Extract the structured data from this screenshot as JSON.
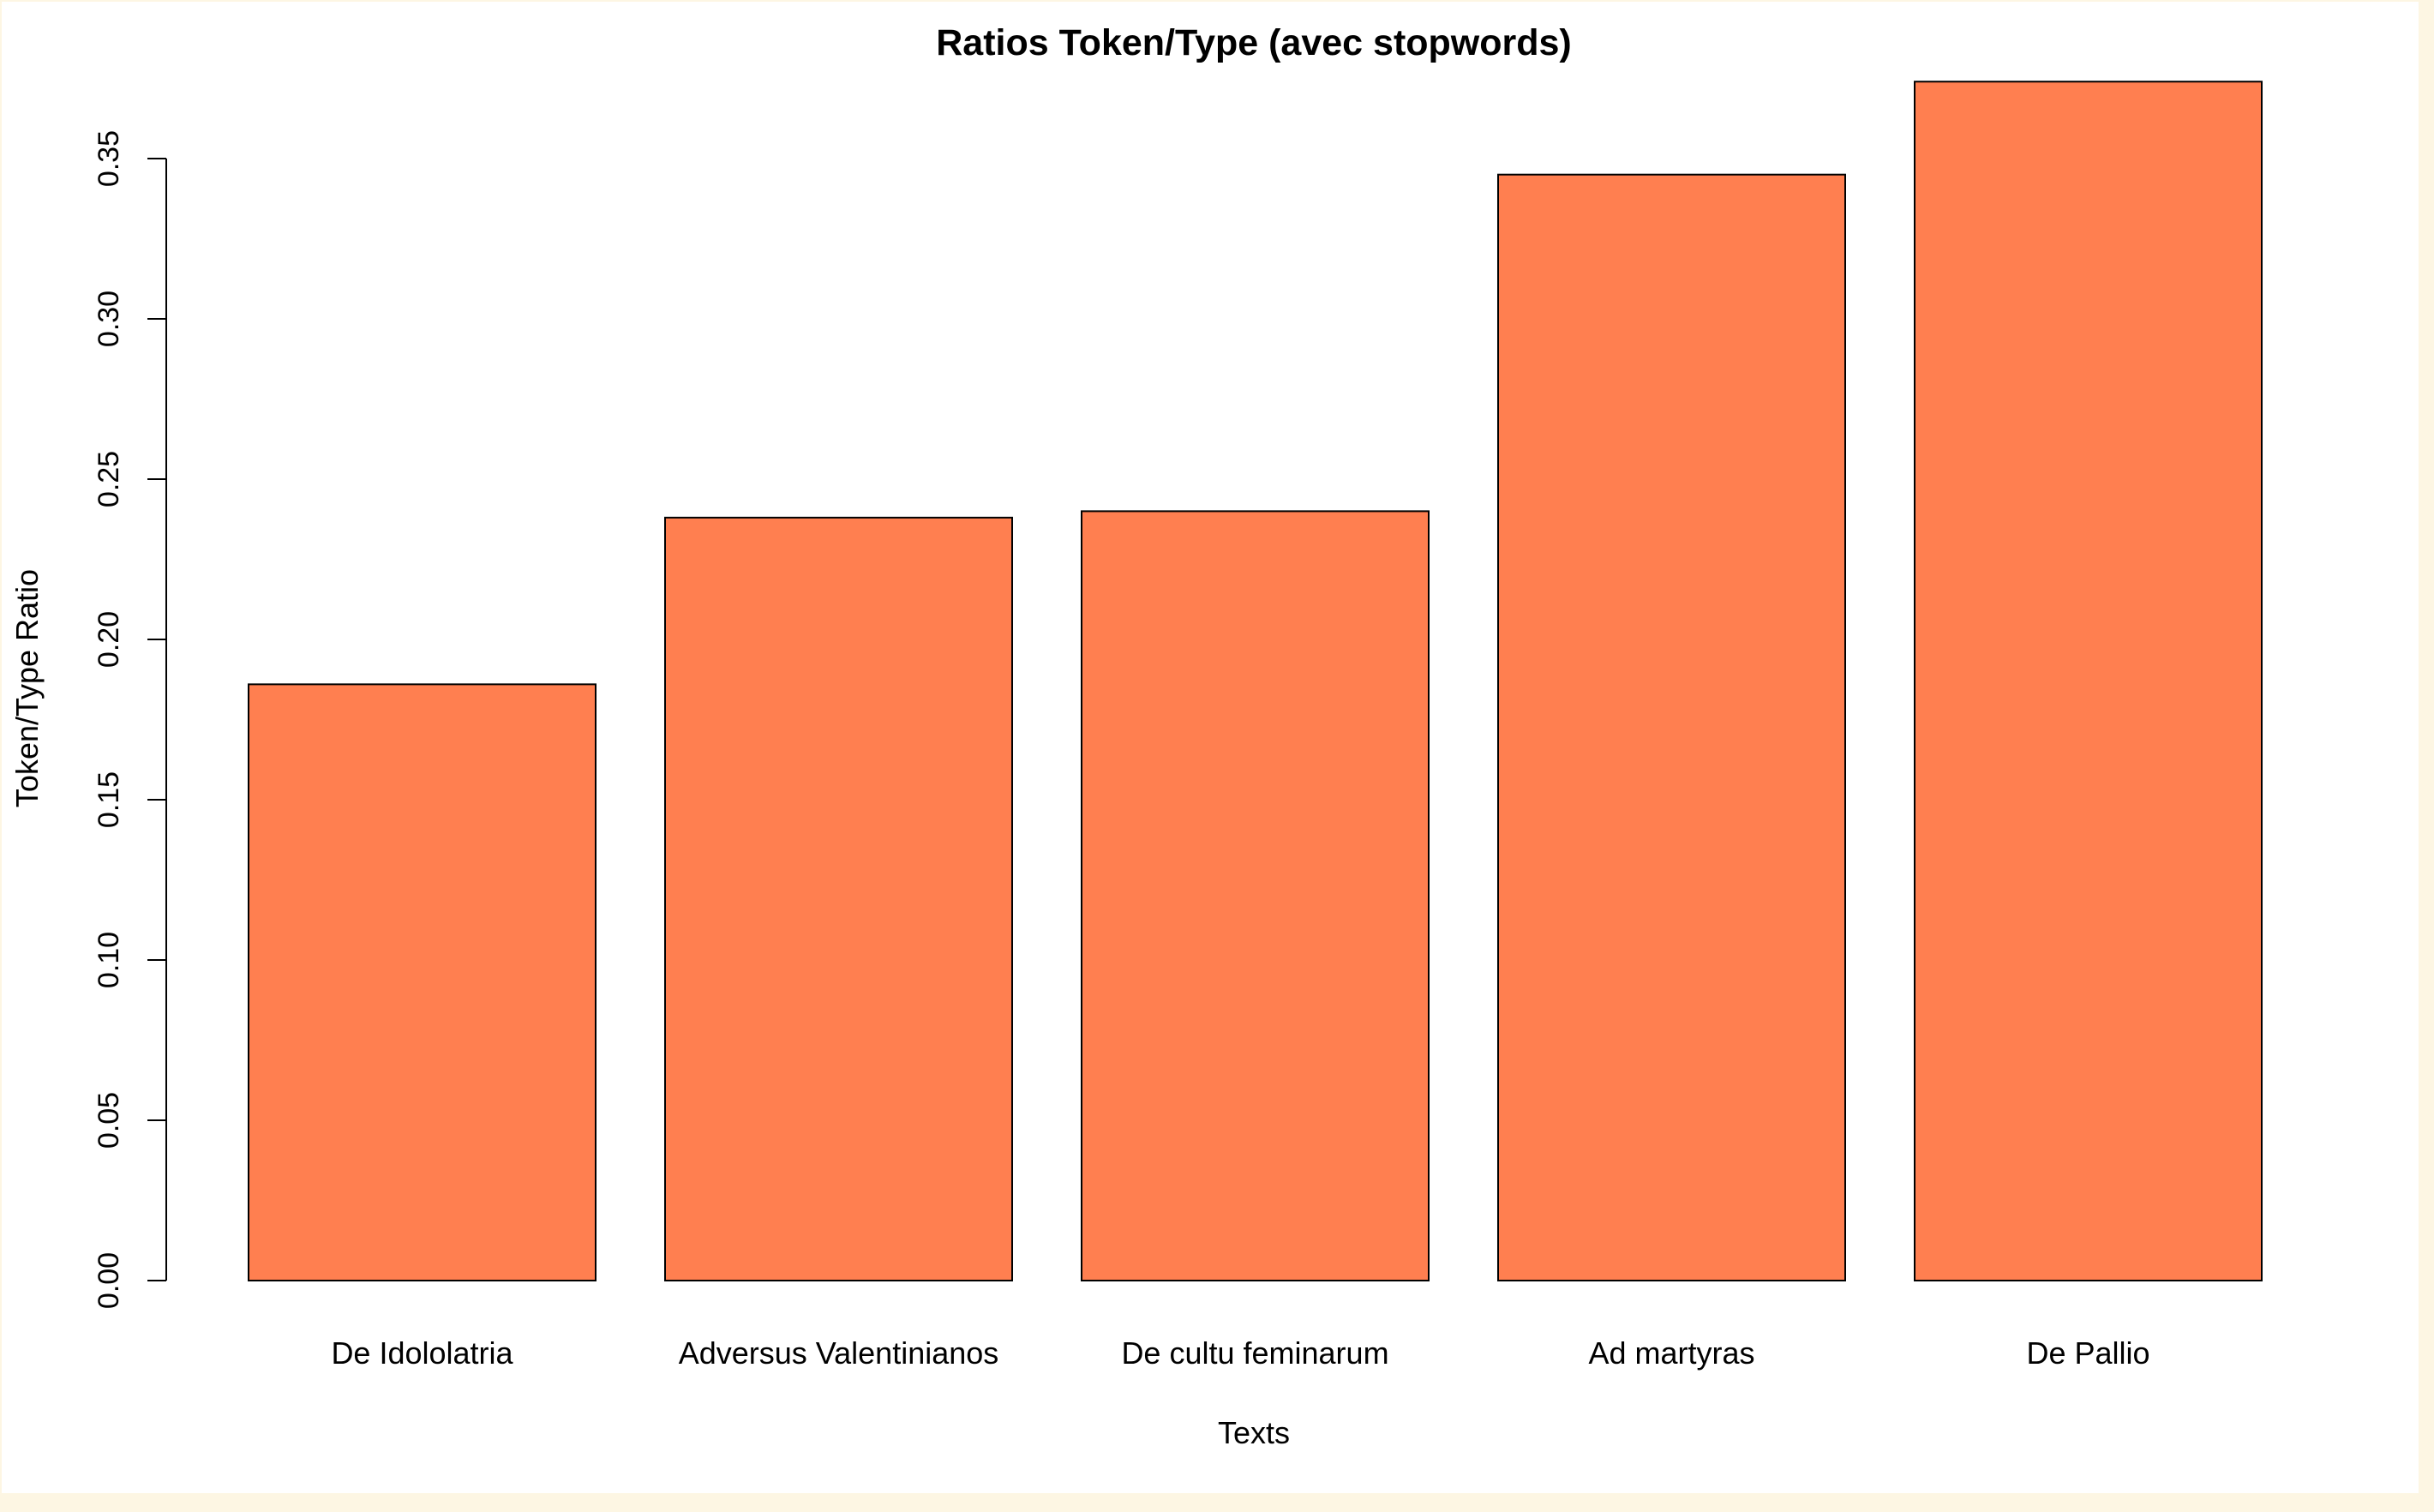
{
  "chart_data": {
    "type": "bar",
    "title": "Ratios Token/Type (avec stopwords)",
    "xlabel": "Texts",
    "ylabel": "Token/Type Ratio",
    "categories": [
      "De Idololatria",
      "Adversus Valentinianos",
      "De cultu feminarum",
      "Ad martyras",
      "De Pallio"
    ],
    "values": [
      0.186,
      0.238,
      0.24,
      0.345,
      0.374
    ],
    "ylim": [
      0,
      0.35
    ],
    "yticks": [
      "0.00",
      "0.05",
      "0.10",
      "0.15",
      "0.20",
      "0.25",
      "0.30",
      "0.35"
    ],
    "grid": false,
    "bar_color": "#ff7f50",
    "bar_border": "#000000",
    "background": "#ffffff",
    "page_background": "#fdf6e3"
  }
}
